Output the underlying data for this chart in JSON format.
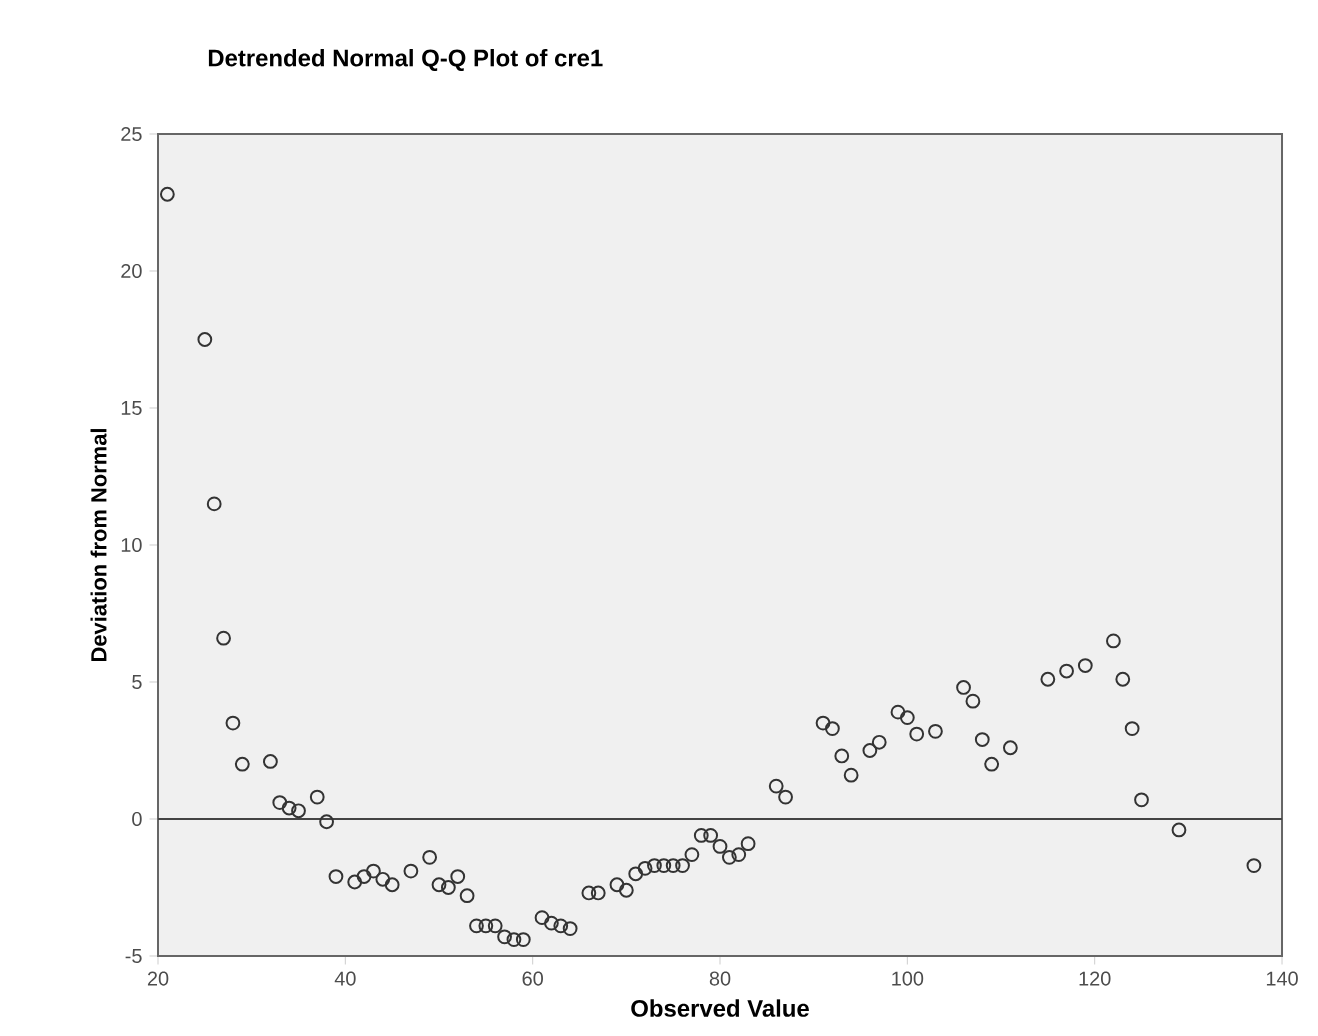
{
  "chart_data": {
    "type": "scatter",
    "title": "Detrended Normal Q-Q Plot of cre1",
    "xlabel": "Observed Value",
    "ylabel": "Deviation from Normal",
    "x": [
      21,
      25,
      26,
      27,
      28,
      29,
      32,
      33,
      34,
      35,
      37,
      38,
      39,
      41,
      42,
      43,
      44,
      45,
      47,
      49,
      50,
      51,
      52,
      53,
      54,
      55,
      56,
      57,
      58,
      59,
      61,
      62,
      63,
      64,
      66,
      67,
      69,
      70,
      71,
      72,
      73,
      74,
      75,
      76,
      77,
      78,
      79,
      80,
      81,
      82,
      83,
      86,
      87,
      91,
      92,
      93,
      94,
      96,
      97,
      99,
      100,
      101,
      103,
      106,
      107,
      108,
      109,
      111,
      115,
      117,
      119,
      122,
      123,
      124,
      125,
      129,
      137
    ],
    "values": [
      22.8,
      17.5,
      11.5,
      6.6,
      3.5,
      2.0,
      2.1,
      0.6,
      0.4,
      0.3,
      0.8,
      -0.1,
      -2.1,
      -2.3,
      -2.1,
      -1.9,
      -2.2,
      -2.4,
      -1.9,
      -1.4,
      -2.4,
      -2.5,
      -2.1,
      -2.8,
      -3.9,
      -3.9,
      -3.9,
      -4.3,
      -4.4,
      -4.4,
      -3.6,
      -3.8,
      -3.9,
      -4.0,
      -2.7,
      -2.7,
      -2.4,
      -2.6,
      -2.0,
      -1.8,
      -1.7,
      -1.7,
      -1.7,
      -1.7,
      -1.3,
      -0.6,
      -0.6,
      -1.0,
      -1.4,
      -1.3,
      -0.9,
      1.2,
      0.8,
      3.5,
      3.3,
      2.3,
      1.6,
      2.5,
      2.8,
      3.9,
      3.7,
      3.1,
      3.2,
      4.8,
      4.3,
      2.9,
      2.0,
      2.6,
      5.1,
      5.4,
      5.6,
      6.5,
      5.1,
      3.3,
      0.7,
      -0.4,
      -1.7
    ],
    "color": "#333333",
    "marker": "circle",
    "xlim": [
      20,
      140
    ],
    "xticks": [
      20,
      40,
      60,
      80,
      100,
      120,
      140
    ],
    "ylim": [
      -5,
      25
    ],
    "yticks": [
      -5,
      0,
      5,
      10,
      15,
      20,
      25
    ],
    "ref_lines": [
      {
        "axis": "y",
        "value": 0,
        "color": "#444444"
      }
    ],
    "grid": false
  }
}
